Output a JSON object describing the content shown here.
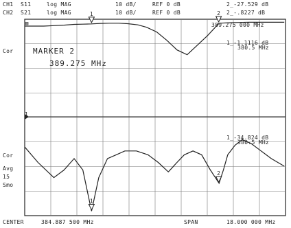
{
  "header": {
    "ch1_label": "CH1",
    "ch1_param": "S11",
    "ch1_format": "log MAG",
    "ch1_scale": "10 dB/",
    "ch1_ref": "REF 0 dB",
    "ch1_readout": "2_-27.529 dB",
    "ch2_label": "CH2",
    "ch2_param": "S21",
    "ch2_format": "log MAG",
    "ch2_scale": "10 dB/",
    "ch2_ref": "REF 0 dB",
    "ch2_readout": "2_-.8227 dB"
  },
  "screen": {
    "corner_tag": "▨",
    "marker_freq_top": "389.275 000 MHz",
    "marker_title": "MARKER 2",
    "marker_value": "389.275 MHz",
    "m1_ch2_readout": "1_-1.1116 dB",
    "m1_ch2_freq": "380.5 MHz",
    "m1_ch1_readout": "1_-34.824 dB",
    "m1_ch1_freq": "380.5 MHz",
    "ref_arrow_label": "1"
  },
  "left_annotations": {
    "cor_top": "Cor",
    "cor_bottom": "Cor",
    "avg": "Avg",
    "avg_factor": "15",
    "smo": "Smo"
  },
  "footer": {
    "center_label": "CENTER",
    "center_value": "384.887 500 MHz",
    "span_label": "SPAN",
    "span_value": "18.000 000 MHz"
  },
  "chart_data": {
    "type": "line",
    "x_unit": "MHz",
    "center": 384.8875,
    "span": 18.0,
    "x_range": [
      375.8875,
      393.8875
    ],
    "y_scale_db_per_div": 10,
    "ref_db": 0,
    "grid": true,
    "markers": [
      {
        "id": "1",
        "freq_mhz": 380.5,
        "s21_db": -1.1116,
        "s11_db": -34.824
      },
      {
        "id": "2",
        "freq_mhz": 389.275,
        "s21_db": -0.8227,
        "s11_db": -27.529
      }
    ],
    "series": [
      {
        "name": "S11",
        "x": [
          375.9,
          376.8,
          377.9,
          378.6,
          379.3,
          379.9,
          380.5,
          381.0,
          381.6,
          382.2,
          382.8,
          383.6,
          384.4,
          385.1,
          385.8,
          386.4,
          386.9,
          387.5,
          388.1,
          388.7,
          389.3,
          389.6,
          389.9,
          390.4,
          390.9,
          391.5,
          392.2,
          392.9,
          393.8
        ],
        "y": [
          -18,
          -22,
          -26,
          -24,
          -21,
          -24,
          -34.8,
          -26,
          -21,
          -20,
          -19,
          -19,
          -20,
          -22,
          -24.5,
          -22,
          -20,
          -19,
          -20,
          -24,
          -27.5,
          -24,
          -20,
          -17.5,
          -16,
          -17,
          -19,
          -21,
          -23
        ]
      },
      {
        "name": "S21",
        "x": [
          375.9,
          376.5,
          377.2,
          377.9,
          378.6,
          379.3,
          379.9,
          380.5,
          381.1,
          381.7,
          382.4,
          383.0,
          383.7,
          384.3,
          385.0,
          385.7,
          386.4,
          387.1,
          387.8,
          388.5,
          389.3,
          390.0,
          390.7,
          391.4,
          392.2,
          393.0,
          393.8
        ],
        "y": [
          -2,
          -2,
          -2,
          -1.8,
          -1.6,
          -1.3,
          -1.2,
          -1.1,
          -0.9,
          -0.8,
          -0.8,
          -1.0,
          -1.5,
          -2.5,
          -4.5,
          -8,
          -12,
          -14,
          -10,
          -6,
          -0.8,
          -0.6,
          -0.5,
          -0.4,
          -0.4,
          -0.4,
          -0.4
        ]
      }
    ]
  }
}
